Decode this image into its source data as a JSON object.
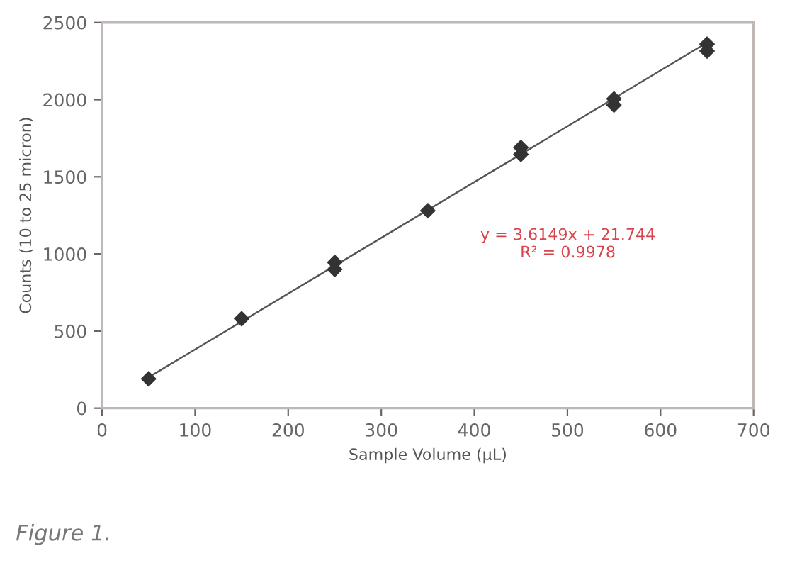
{
  "chart_data": {
    "type": "scatter",
    "xlabel": "Sample Volume (µL)",
    "ylabel": "Counts (10 to 25 micron)",
    "xlim": [
      0,
      700
    ],
    "xticks": [
      0,
      100,
      200,
      300,
      400,
      500,
      600,
      700
    ],
    "ylim": [
      0,
      2500
    ],
    "yticks": [
      0,
      500,
      1000,
      1500,
      2000,
      2500
    ],
    "grid": false,
    "marker": "diamond",
    "series": [
      {
        "color": "#333333",
        "x": [
          50,
          150,
          250,
          250,
          350,
          450,
          450,
          550,
          550,
          650,
          650
        ],
        "values": [
          190,
          580,
          900,
          945,
          1280,
          1645,
          1690,
          1965,
          2005,
          2315,
          2360
        ]
      },
      {
        "type": "line",
        "color": "#555555",
        "marker": "none",
        "x": [
          50,
          650
        ],
        "values": [
          200,
          2370
        ]
      }
    ],
    "annotations": [
      "y = 3.6149x + 21.744\nR² = 0.9978",
      "Figure 1."
    ]
  }
}
